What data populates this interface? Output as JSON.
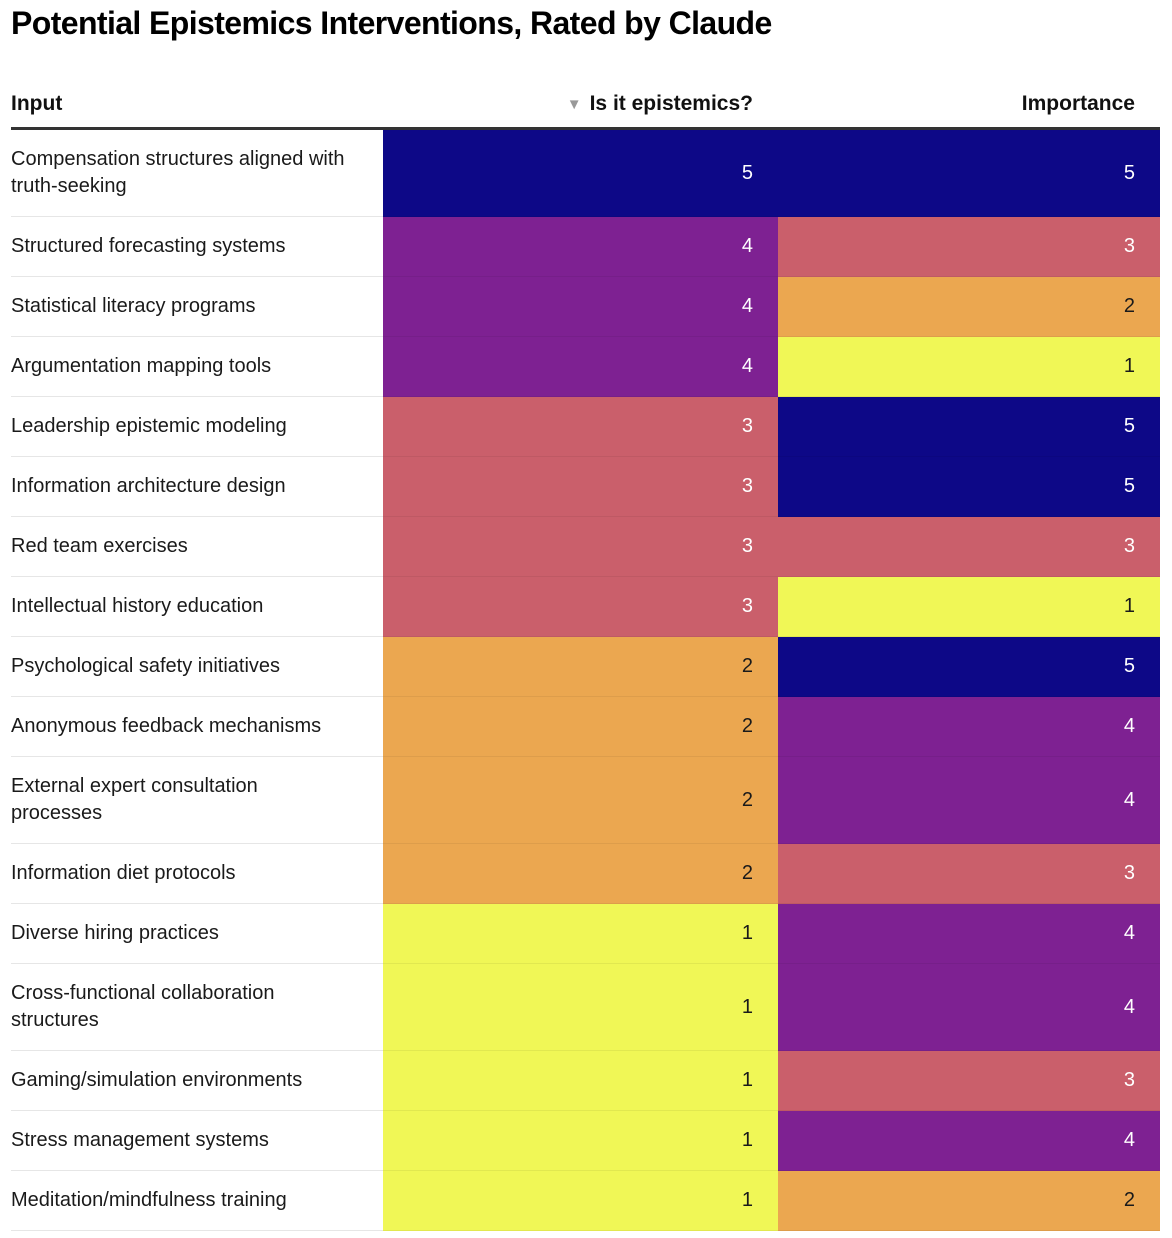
{
  "chart_data": {
    "type": "table",
    "title": "Potential Epistemics Interventions, Rated by Claude",
    "columns": [
      "Input",
      "Is it epistemics?",
      "Importance"
    ],
    "sorted_by": "Is it epistemics?",
    "sort_direction": "descending",
    "color_scale": {
      "5": "#0d0887",
      "4": "#7e2192",
      "3": "#ca5f6b",
      "2": "#eba750",
      "1": "#f0f756"
    },
    "text_colors": {
      "dark_bg": "#ffffff",
      "light_bg": "#1a1a1a"
    },
    "rows": [
      {
        "input": "Compensation structures aligned with truth-seeking",
        "epistemics": 5,
        "importance": 5
      },
      {
        "input": "Structured forecasting systems",
        "epistemics": 4,
        "importance": 3
      },
      {
        "input": "Statistical literacy programs",
        "epistemics": 4,
        "importance": 2
      },
      {
        "input": "Argumentation mapping tools",
        "epistemics": 4,
        "importance": 1
      },
      {
        "input": "Leadership epistemic modeling",
        "epistemics": 3,
        "importance": 5
      },
      {
        "input": "Information architecture design",
        "epistemics": 3,
        "importance": 5
      },
      {
        "input": "Red team exercises",
        "epistemics": 3,
        "importance": 3
      },
      {
        "input": "Intellectual history education",
        "epistemics": 3,
        "importance": 1
      },
      {
        "input": "Psychological safety initiatives",
        "epistemics": 2,
        "importance": 5
      },
      {
        "input": "Anonymous feedback mechanisms",
        "epistemics": 2,
        "importance": 4
      },
      {
        "input": "External expert consultation processes",
        "epistemics": 2,
        "importance": 4
      },
      {
        "input": "Information diet protocols",
        "epistemics": 2,
        "importance": 3
      },
      {
        "input": "Diverse hiring practices",
        "epistemics": 1,
        "importance": 4
      },
      {
        "input": "Cross-functional collaboration structures",
        "epistemics": 1,
        "importance": 4
      },
      {
        "input": "Gaming/simulation environments",
        "epistemics": 1,
        "importance": 3
      },
      {
        "input": "Stress management systems",
        "epistemics": 1,
        "importance": 4
      },
      {
        "input": "Meditation/mindfulness training",
        "epistemics": 1,
        "importance": 2
      }
    ]
  },
  "header": {
    "title": "Potential Epistemics Interventions, Rated by Claude",
    "col_input": "Input",
    "col_epistemics": "Is it epistemics?",
    "col_importance": "Importance",
    "sort_icon": "▼"
  }
}
